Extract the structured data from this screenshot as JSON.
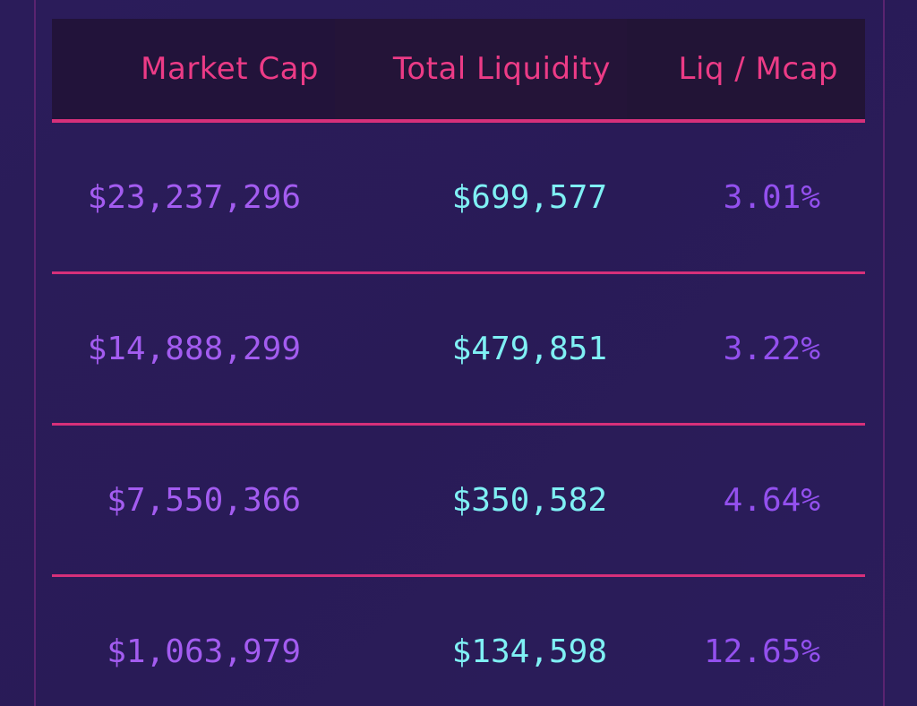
{
  "colors": {
    "background": "#2a1c59",
    "header_bg": "#22133a",
    "header_text": "#ec3b86",
    "row_divider": "#d6307a",
    "market_cap_text": "#a35cf0",
    "liquidity_text": "#7ff0f4",
    "ratio_text": "#9350ee"
  },
  "table": {
    "columns": [
      {
        "key": "market_cap",
        "label": "Market Cap"
      },
      {
        "key": "total_liquidity",
        "label": "Total Liquidity"
      },
      {
        "key": "liq_mcap",
        "label": "Liq / Mcap"
      }
    ],
    "rows": [
      {
        "market_cap": "$23,237,296",
        "total_liquidity": "$699,577",
        "liq_mcap": "3.01%"
      },
      {
        "market_cap": "$14,888,299",
        "total_liquidity": "$479,851",
        "liq_mcap": "3.22%"
      },
      {
        "market_cap": "$7,550,366",
        "total_liquidity": "$350,582",
        "liq_mcap": "4.64%"
      },
      {
        "market_cap": "$1,063,979",
        "total_liquidity": "$134,598",
        "liq_mcap": "12.65%"
      }
    ]
  }
}
